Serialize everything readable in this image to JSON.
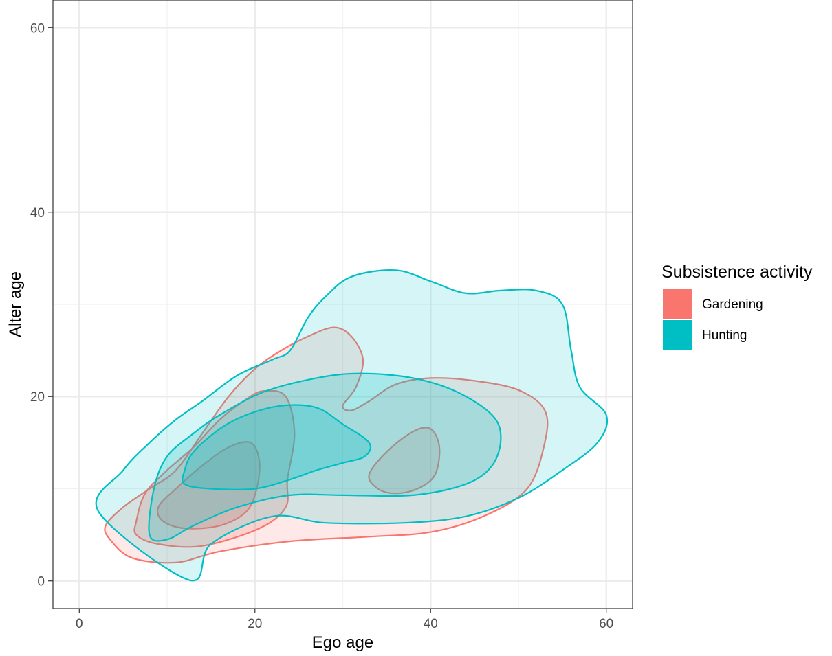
{
  "chart_data": {
    "type": "contour",
    "title": "",
    "xlabel": "Ego age",
    "ylabel": "Alter age",
    "xlim": [
      -3,
      63
    ],
    "ylim": [
      -3,
      63
    ],
    "x_ticks": [
      0,
      20,
      40,
      60
    ],
    "y_ticks": [
      0,
      20,
      40,
      60
    ],
    "x_tick_labels": [
      "0",
      "20",
      "40",
      "60"
    ],
    "y_tick_labels": [
      "0",
      "20",
      "40",
      "60"
    ],
    "grid": true,
    "legend": {
      "title": "Subsistence activity",
      "position": "right",
      "entries": [
        "Gardening",
        "Hunting"
      ]
    },
    "colors": {
      "Gardening": "#F8766D",
      "Hunting": "#00BFC4"
    },
    "series": [
      {
        "name": "Gardening",
        "contours": [
          {
            "level": 1,
            "points": [
              [
                3,
                6
              ],
              [
                5,
                8
              ],
              [
                8,
                10
              ],
              [
                11,
                12
              ],
              [
                14,
                16
              ],
              [
                17,
                20
              ],
              [
                20,
                23
              ],
              [
                23,
                25
              ],
              [
                26,
                26.5
              ],
              [
                29,
                27.5
              ],
              [
                31,
                26.5
              ],
              [
                32.3,
                24
              ],
              [
                31.5,
                21
              ],
              [
                30,
                19
              ],
              [
                31,
                18.5
              ],
              [
                33,
                19.5
              ],
              [
                36,
                21.3
              ],
              [
                40,
                22
              ],
              [
                45,
                21.7
              ],
              [
                50,
                20.7
              ],
              [
                53,
                18.5
              ],
              [
                53,
                15
              ],
              [
                51,
                10
              ],
              [
                46,
                7
              ],
              [
                40,
                5.3
              ],
              [
                33,
                4.8
              ],
              [
                24,
                4.3
              ],
              [
                16,
                3.2
              ],
              [
                11,
                2
              ],
              [
                6,
                2.5
              ],
              [
                3.5,
                4.5
              ]
            ]
          },
          {
            "level": 2,
            "points": [
              [
                6.5,
                6.5
              ],
              [
                7.5,
                9.5
              ],
              [
                10,
                12
              ],
              [
                13,
                14.5
              ],
              [
                16,
                17.5
              ],
              [
                19,
                19.7
              ],
              [
                21,
                20.6
              ],
              [
                23.5,
                20
              ],
              [
                24.5,
                16
              ],
              [
                23.7,
                11
              ],
              [
                23.5,
                8
              ],
              [
                20.5,
                5.7
              ],
              [
                14,
                3.8
              ],
              [
                9,
                4
              ],
              [
                6.5,
                5
              ]
            ]
          },
          {
            "level": 2,
            "points": [
              [
                33,
                11.5
              ],
              [
                35,
                14
              ],
              [
                38,
                16.2
              ],
              [
                40,
                16.5
              ],
              [
                41,
                14.5
              ],
              [
                40.5,
                11.5
              ],
              [
                38.5,
                10
              ],
              [
                36,
                9.5
              ],
              [
                34,
                10
              ]
            ]
          },
          {
            "level": 3,
            "points": [
              [
                9,
                8
              ],
              [
                11,
                10
              ],
              [
                14,
                12.5
              ],
              [
                17,
                14.5
              ],
              [
                19.5,
                15
              ],
              [
                20.5,
                13
              ],
              [
                20.2,
                10
              ],
              [
                19,
                7.5
              ],
              [
                16,
                6
              ],
              [
                12,
                5.7
              ],
              [
                9.5,
                6.5
              ]
            ]
          }
        ]
      },
      {
        "name": "Hunting",
        "contours": [
          {
            "level": 1,
            "points": [
              [
                2.2,
                7.5
              ],
              [
                5,
                12
              ],
              [
                8,
                15
              ],
              [
                11,
                17.5
              ],
              [
                14,
                19.5
              ],
              [
                18,
                22.3
              ],
              [
                22,
                24
              ],
              [
                24,
                25
              ],
              [
                26,
                28.5
              ],
              [
                28,
                30.8
              ],
              [
                31,
                33
              ],
              [
                36,
                33.7
              ],
              [
                40,
                32.5
              ],
              [
                44,
                31.2
              ],
              [
                48,
                31.5
              ],
              [
                52,
                31.5
              ],
              [
                55,
                30
              ],
              [
                56,
                25
              ],
              [
                57,
                21
              ],
              [
                60,
                18
              ],
              [
                59,
                15
              ],
              [
                55,
                12
              ],
              [
                50,
                9
              ],
              [
                44,
                7
              ],
              [
                37,
                6.3
              ],
              [
                28,
                6.3
              ],
              [
                22,
                7
              ],
              [
                15,
                4
              ],
              [
                12.5,
                0.1
              ]
            ]
          },
          {
            "level": 2,
            "points": [
              [
                8,
                5
              ],
              [
                8.5,
                10
              ],
              [
                10,
                13.5
              ],
              [
                13,
                16
              ],
              [
                16,
                18
              ],
              [
                21,
                20.5
              ],
              [
                27,
                22
              ],
              [
                32,
                22.5
              ],
              [
                38,
                22
              ],
              [
                43,
                20.5
              ],
              [
                47,
                18
              ],
              [
                48,
                15.5
              ],
              [
                47,
                12.5
              ],
              [
                44,
                10.5
              ],
              [
                38,
                9.3
              ],
              [
                30,
                9.3
              ],
              [
                24,
                9.3
              ],
              [
                18,
                8
              ],
              [
                13,
                6
              ],
              [
                10,
                4.5
              ]
            ]
          },
          {
            "level": 3,
            "points": [
              [
                12,
                12
              ],
              [
                13,
                14
              ],
              [
                16,
                16.5
              ],
              [
                19,
                18
              ],
              [
                23,
                19
              ],
              [
                27,
                18.8
              ],
              [
                30,
                17
              ],
              [
                33,
                15
              ],
              [
                32.5,
                13.5
              ],
              [
                30,
                12.8
              ],
              [
                27,
                12
              ],
              [
                24,
                11
              ],
              [
                20,
                10
              ],
              [
                15,
                10
              ],
              [
                12,
                10.5
              ]
            ]
          }
        ]
      }
    ]
  }
}
